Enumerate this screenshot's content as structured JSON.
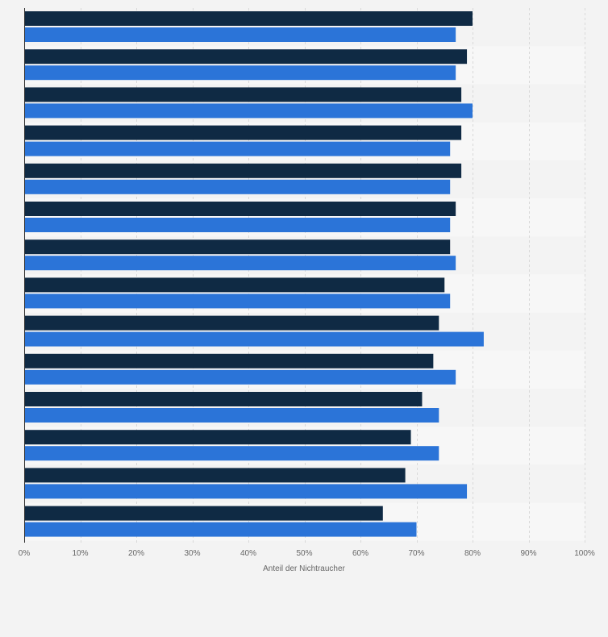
{
  "chart_data": {
    "type": "bar",
    "orientation": "horizontal",
    "xlabel": "Anteil der Nichtraucher",
    "xlim": [
      0,
      100
    ],
    "ticks": [
      "0%",
      "10%",
      "20%",
      "30%",
      "40%",
      "50%",
      "60%",
      "70%",
      "80%",
      "90%",
      "100%"
    ],
    "grid": true,
    "legend": "none",
    "series": [
      {
        "color": "#0f2a44",
        "values": [
          80,
          79,
          78,
          78,
          78,
          77,
          76,
          75,
          74,
          73,
          71,
          69,
          68,
          64
        ]
      },
      {
        "color": "#2b74d8",
        "values": [
          77,
          77,
          80,
          76,
          76,
          76,
          77,
          76,
          82,
          77,
          74,
          74,
          79,
          70
        ]
      }
    ]
  }
}
